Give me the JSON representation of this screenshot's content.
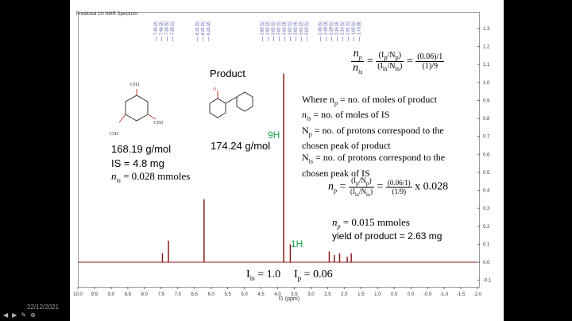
{
  "spectrum": {
    "title": "Predicted 1H NMR Spectrum",
    "axis_label": "f1 (ppm)",
    "x_ticks": [
      "10.0",
      "9.5",
      "9.0",
      "8.5",
      "8.0",
      "7.5",
      "7.0",
      "6.5",
      "6.0",
      "5.5",
      "5.0",
      "4.5",
      "4.0",
      "3.5",
      "3.0",
      "2.5",
      "2.0",
      "1.5",
      "1.0",
      "0.5",
      "0.0",
      "-0.5",
      "-1.0",
      "-1.5",
      "-2.0"
    ],
    "y_ticks": [
      "1.3",
      "1.2",
      "1.1",
      "1.0",
      "0.9",
      "0.8",
      "0.7",
      "0.6",
      "0.5",
      "0.4",
      "0.3",
      "0.2",
      "0.1",
      "0.0",
      "-0.1"
    ],
    "peak_groups": [
      {
        "labels": [
          "7.46 [2]",
          "7.46 [2]",
          "7.28 [5]",
          "7.28 [1]"
        ]
      },
      {
        "labels": [
          "6.21 [1]",
          "6.21 [1]",
          "6.21 [2]"
        ]
      },
      {
        "labels": [
          "3.82 [1]",
          "3.82 [2]",
          "3.82 [1]",
          "3.82 [1]",
          "3.82 [3]",
          "3.82 [1]",
          "3.82 [4]",
          "3.62 [2]",
          "3.62 [1]"
        ]
      },
      {
        "labels": [
          "2.45 [1]",
          "2.39 [3]",
          "2.29 [1]",
          "2.16 [3]",
          "2.14 [1]",
          "1.91 [1]",
          "1.82 [1]",
          "1.79 [8]"
        ]
      }
    ],
    "peaks": [
      {
        "ppm": 7.46,
        "height": 0.05
      },
      {
        "ppm": 7.28,
        "height": 0.12
      },
      {
        "ppm": 6.21,
        "height": 0.35
      },
      {
        "ppm": 3.82,
        "height": 1.05
      },
      {
        "ppm": 3.62,
        "height": 0.1
      },
      {
        "ppm": 2.45,
        "height": 0.06
      },
      {
        "ppm": 2.3,
        "height": 0.04
      },
      {
        "ppm": 2.14,
        "height": 0.05
      },
      {
        "ppm": 1.91,
        "height": 0.03
      },
      {
        "ppm": 1.79,
        "height": 0.05
      }
    ]
  },
  "structure_is": {
    "labels": [
      "CH3",
      "CH3",
      "CH3"
    ],
    "mw": "168.19 g/mol",
    "is_mass": "IS = 4.8 mg",
    "n_is": "= 0.028 mmoles"
  },
  "structure_product": {
    "title": "Product",
    "mw": "174.24 g/mol"
  },
  "annotations": {
    "label_9h": "9H",
    "label_1h": "1H",
    "i_is": "I",
    "i_is_sub": "is",
    "i_is_val": "= 1.0",
    "i_p": "I",
    "i_p_sub": "p",
    "i_p_val": "= 0.06"
  },
  "equations": {
    "top_val_num": "(0.06)",
    "top_val_den1": "1",
    "top_val_den2": "(1)",
    "top_val_den3": "9",
    "where_lines": [
      "Where n",
      "= no. of moles of product",
      "n",
      "= no. of moles of IS",
      "N",
      "= no. of protons correspond to the",
      "chosen peak of product",
      "N",
      "= no. of protons correspond to the",
      "chosen peak of IS"
    ],
    "np_calc_tail": "x 0.028",
    "np_result": "= 0.015 mmoles",
    "yield": "yield of product = 2.63 mg"
  },
  "footer": {
    "date": "22/12/2021"
  }
}
